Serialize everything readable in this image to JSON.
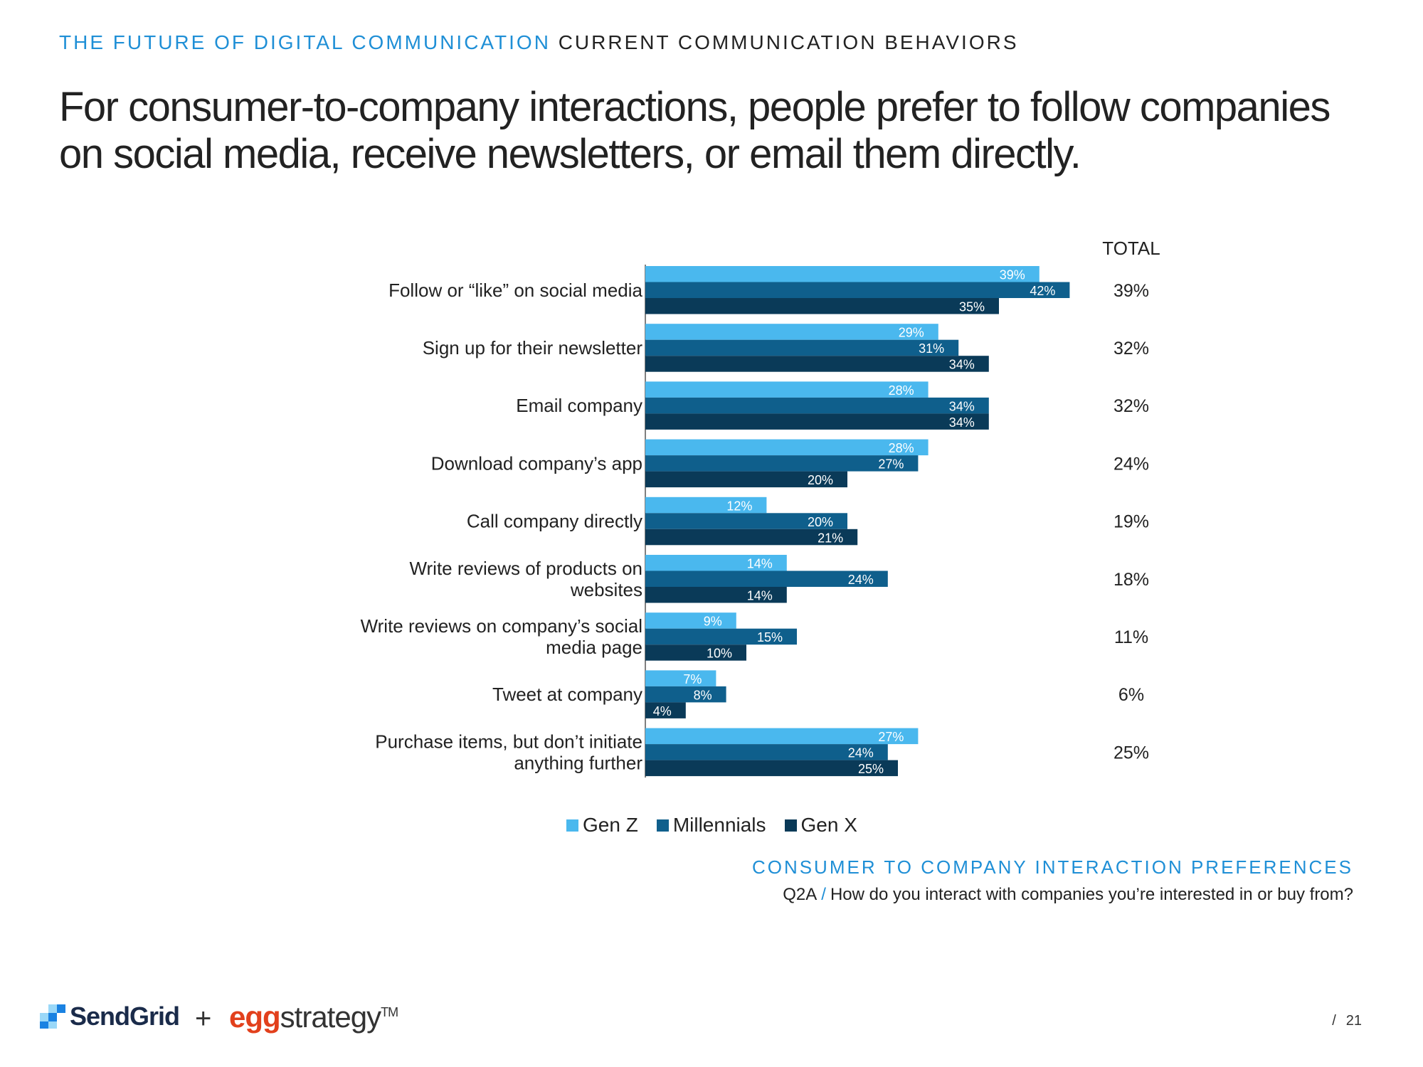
{
  "header": {
    "kicker_section": "THE FUTURE OF DIGITAL COMMUNICATION",
    "kicker_topic": "CURRENT COMMUNICATION BEHAVIORS",
    "headline": "For consumer-to-company interactions, people prefer to follow companies on social media, receive newsletters, or email them directly."
  },
  "chart_data": {
    "type": "bar",
    "orientation": "horizontal",
    "categories": [
      [
        "Follow or “like” on social media"
      ],
      [
        "Sign up for their newsletter"
      ],
      [
        "Email company"
      ],
      [
        "Download company’s app"
      ],
      [
        "Call company directly"
      ],
      [
        "Write reviews of products on",
        "websites"
      ],
      [
        "Write reviews on company’s social",
        "media page"
      ],
      [
        "Tweet at company"
      ],
      [
        "Purchase items, but don’t initiate",
        "anything further"
      ]
    ],
    "series": [
      {
        "name": "Gen Z",
        "color": "#4ab8ee",
        "values": [
          39,
          29,
          28,
          28,
          12,
          14,
          9,
          7,
          27
        ]
      },
      {
        "name": "Millennials",
        "color": "#0f5f8c",
        "values": [
          42,
          31,
          34,
          27,
          20,
          24,
          15,
          8,
          24
        ]
      },
      {
        "name": "Gen X",
        "color": "#0a3a58",
        "values": [
          35,
          34,
          34,
          20,
          21,
          14,
          10,
          4,
          25
        ]
      }
    ],
    "value_suffix": "%",
    "total_header": "TOTAL",
    "totals": [
      "39%",
      "32%",
      "32%",
      "24%",
      "19%",
      "18%",
      "11%",
      "6%",
      "25%"
    ],
    "xlim": [
      0,
      50
    ],
    "legend_position": "bottom"
  },
  "footer": {
    "chart_subtitle": "CONSUMER TO COMPANY INTERACTION PREFERENCES",
    "question_id": "Q2A",
    "question_slash": "/",
    "question_text": "How do you interact with companies you’re interested in or buy from?",
    "logo_sendgrid": "SendGrid",
    "plus": "+",
    "logo_egg": "egg",
    "logo_strategy": "strategy",
    "logo_tm": "TM",
    "page_sep": "/",
    "page_number": "21"
  }
}
